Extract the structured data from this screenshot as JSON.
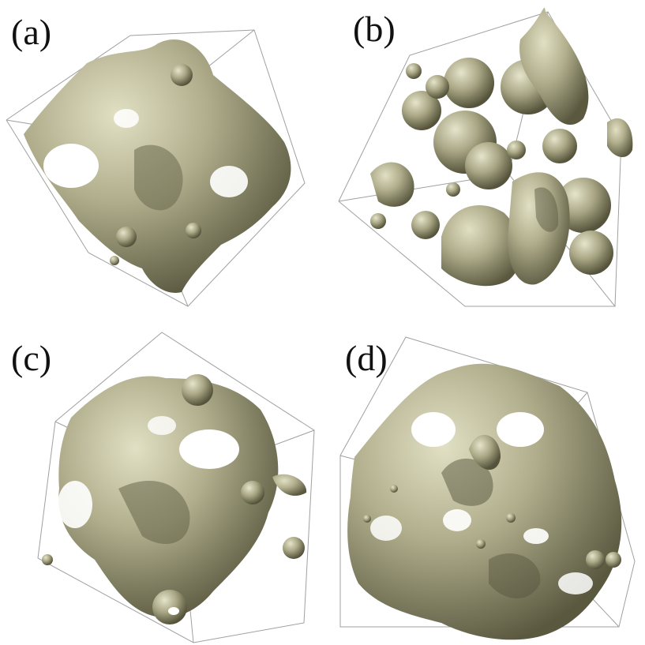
{
  "panels": [
    {
      "id": "a",
      "label": "(a)"
    },
    {
      "id": "b",
      "label": "(b)"
    },
    {
      "id": "c",
      "label": "(c)"
    },
    {
      "id": "d",
      "label": "(d)"
    }
  ],
  "colors": {
    "surface_light": "#d8d6b8",
    "surface_mid": "#a9a784",
    "surface_dark": "#5f5d43",
    "box_edge": "#9a9a9a",
    "background": "#ffffff"
  }
}
